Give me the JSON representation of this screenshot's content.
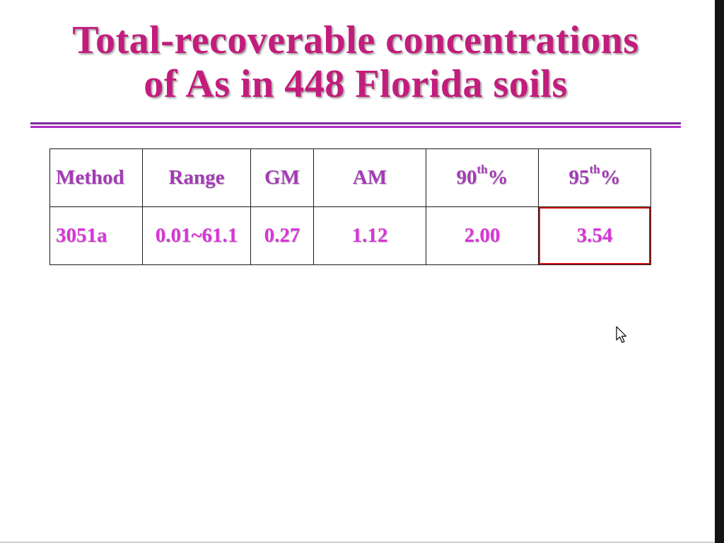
{
  "slide": {
    "title_line1": "Total-recoverable concentrations",
    "title_line2": "of As in 448 Florida soils"
  },
  "table": {
    "headers": [
      {
        "label": "Method"
      },
      {
        "label": "Range"
      },
      {
        "label": "GM"
      },
      {
        "label": "AM"
      },
      {
        "label": "90",
        "sup": "th",
        "suffix": "%"
      },
      {
        "label": "95",
        "sup": "th",
        "suffix": "%"
      }
    ],
    "rows": [
      [
        "3051a",
        "0.01~61.1",
        "0.27",
        "1.12",
        "2.00",
        "3.54"
      ]
    ],
    "highlighted_cell": "3.54"
  },
  "colors": {
    "title": "#c21d7c",
    "header_text": "#a33bb5",
    "value_text": "#d934d9",
    "rule_dark": "#7a2a9c",
    "rule_light": "#b02ec8",
    "highlight_border": "#d21414"
  },
  "icons": {
    "cursor": "mouse-pointer-icon"
  }
}
